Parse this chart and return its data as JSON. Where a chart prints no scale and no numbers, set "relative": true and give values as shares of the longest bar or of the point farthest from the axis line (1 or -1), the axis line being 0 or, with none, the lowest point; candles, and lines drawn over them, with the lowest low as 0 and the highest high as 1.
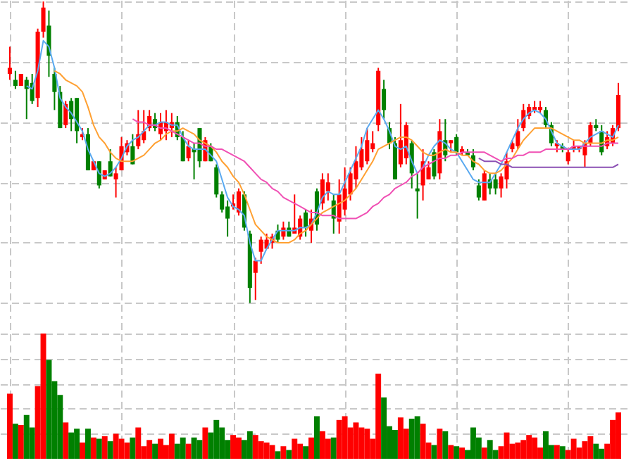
{
  "chart_data": [
    {
      "type": "candlestick",
      "relative": true,
      "grid": true,
      "tick_labels": false,
      "categories": [
        null,
        null,
        null,
        null,
        null,
        null,
        null,
        null,
        null,
        null,
        null,
        null,
        null,
        null,
        null,
        null,
        null,
        null,
        null,
        null,
        null,
        null,
        null,
        null,
        null,
        null,
        null,
        null,
        null,
        null,
        null,
        null,
        null,
        null,
        null,
        null,
        null,
        null,
        null,
        null,
        null,
        null,
        null,
        null,
        null,
        null,
        null,
        null,
        null,
        null,
        null,
        null,
        null,
        null,
        null,
        null,
        null,
        null,
        null,
        null,
        null,
        null,
        null,
        null,
        null,
        null,
        null,
        null,
        null,
        null,
        null,
        null,
        null,
        null,
        null,
        null,
        null,
        null,
        null,
        null,
        null,
        null,
        null,
        null,
        null,
        null,
        null,
        null,
        null,
        null,
        null,
        null,
        null,
        null,
        null,
        null,
        null,
        null,
        null,
        null,
        null,
        null,
        null,
        null,
        null,
        null,
        null,
        null,
        null,
        null
      ],
      "ohlc": [
        [
          0.76,
          0.85,
          0.74,
          0.78
        ],
        [
          0.74,
          0.77,
          0.71,
          0.72
        ],
        [
          0.72,
          0.76,
          0.72,
          0.76
        ],
        [
          0.74,
          0.75,
          0.61,
          0.71
        ],
        [
          0.73,
          0.76,
          0.66,
          0.67
        ],
        [
          0.68,
          0.91,
          0.65,
          0.9
        ],
        [
          0.9,
          1.0,
          0.88,
          0.98
        ],
        [
          0.92,
          0.97,
          0.75,
          0.82
        ],
        [
          0.76,
          0.78,
          0.64,
          0.7
        ],
        [
          0.7,
          0.72,
          0.58,
          0.58
        ],
        [
          0.59,
          0.67,
          0.58,
          0.66
        ],
        [
          0.67,
          0.68,
          0.57,
          0.61
        ],
        [
          0.68,
          0.68,
          0.53,
          0.57
        ],
        [
          0.55,
          0.58,
          0.54,
          0.56
        ],
        [
          0.56,
          0.58,
          0.44,
          0.44
        ],
        [
          0.44,
          0.47,
          0.44,
          0.47
        ],
        [
          0.47,
          0.47,
          0.38,
          0.39
        ],
        [
          0.41,
          0.44,
          0.41,
          0.44
        ],
        [
          0.47,
          0.51,
          0.42,
          0.42
        ],
        [
          0.41,
          0.45,
          0.35,
          0.43
        ],
        [
          0.44,
          0.55,
          0.44,
          0.52
        ],
        [
          0.5,
          0.54,
          0.49,
          0.53
        ],
        [
          0.52,
          0.56,
          0.46,
          0.46
        ],
        [
          0.52,
          0.64,
          0.51,
          0.56
        ],
        [
          0.54,
          0.64,
          0.53,
          0.57
        ],
        [
          0.58,
          0.64,
          0.57,
          0.62
        ],
        [
          0.61,
          0.63,
          0.57,
          0.58
        ],
        [
          0.56,
          0.63,
          0.54,
          0.6
        ],
        [
          0.57,
          0.64,
          0.54,
          0.6
        ],
        [
          0.58,
          0.63,
          0.55,
          0.6
        ],
        [
          0.6,
          0.62,
          0.54,
          0.55
        ],
        [
          0.55,
          0.57,
          0.47,
          0.47
        ],
        [
          0.48,
          0.54,
          0.47,
          0.52
        ],
        [
          0.51,
          0.53,
          0.41,
          0.5
        ],
        [
          0.58,
          0.58,
          0.45,
          0.47
        ],
        [
          0.47,
          0.55,
          0.47,
          0.54
        ],
        [
          0.52,
          0.53,
          0.47,
          0.47
        ],
        [
          0.45,
          0.46,
          0.35,
          0.36
        ],
        [
          0.36,
          0.37,
          0.3,
          0.31
        ],
        [
          0.32,
          0.34,
          0.22,
          0.28
        ],
        [
          0.32,
          0.36,
          0.31,
          0.33
        ],
        [
          0.3,
          0.38,
          0.29,
          0.37
        ],
        [
          0.36,
          0.37,
          0.24,
          0.25
        ],
        [
          0.23,
          0.24,
          0.0,
          0.05
        ],
        [
          0.1,
          0.15,
          0.01,
          0.14
        ],
        [
          0.17,
          0.22,
          0.13,
          0.21
        ],
        [
          0.18,
          0.23,
          0.18,
          0.21
        ],
        [
          0.2,
          0.23,
          0.18,
          0.22
        ],
        [
          0.24,
          0.26,
          0.2,
          0.21
        ],
        [
          0.22,
          0.27,
          0.21,
          0.25
        ],
        [
          0.25,
          0.27,
          0.22,
          0.22
        ],
        [
          0.23,
          0.36,
          0.23,
          0.25
        ],
        [
          0.22,
          0.29,
          0.21,
          0.28
        ],
        [
          0.3,
          0.31,
          0.22,
          0.25
        ],
        [
          0.24,
          0.31,
          0.2,
          0.28
        ],
        [
          0.37,
          0.38,
          0.24,
          0.26
        ],
        [
          0.33,
          0.43,
          0.31,
          0.41
        ],
        [
          0.37,
          0.43,
          0.34,
          0.4
        ],
        [
          0.34,
          0.36,
          0.23,
          0.28
        ],
        [
          0.27,
          0.41,
          0.23,
          0.36
        ],
        [
          0.31,
          0.45,
          0.29,
          0.38
        ],
        [
          0.36,
          0.45,
          0.34,
          0.43
        ],
        [
          0.41,
          0.52,
          0.38,
          0.47
        ],
        [
          0.45,
          0.55,
          0.44,
          0.51
        ],
        [
          0.47,
          0.58,
          0.46,
          0.54
        ],
        [
          0.51,
          0.57,
          0.5,
          0.53
        ],
        [
          0.59,
          0.78,
          0.57,
          0.77
        ],
        [
          0.71,
          0.74,
          0.61,
          0.64
        ],
        [
          0.58,
          0.6,
          0.51,
          0.53
        ],
        [
          0.53,
          0.55,
          0.41,
          0.41
        ],
        [
          0.46,
          0.66,
          0.45,
          0.54
        ],
        [
          0.48,
          0.6,
          0.46,
          0.59
        ],
        [
          0.53,
          0.54,
          0.38,
          0.43
        ],
        [
          0.38,
          0.43,
          0.28,
          0.37
        ],
        [
          0.39,
          0.51,
          0.34,
          0.47
        ],
        [
          0.41,
          0.47,
          0.41,
          0.45
        ],
        [
          0.5,
          0.51,
          0.41,
          0.42
        ],
        [
          0.43,
          0.61,
          0.41,
          0.57
        ],
        [
          0.54,
          0.61,
          0.47,
          0.49
        ],
        [
          0.53,
          0.54,
          0.5,
          0.54
        ],
        [
          0.55,
          0.56,
          0.49,
          0.5
        ],
        [
          0.5,
          0.52,
          0.49,
          0.51
        ],
        [
          0.5,
          0.51,
          0.49,
          0.49
        ],
        [
          0.49,
          0.51,
          0.44,
          0.45
        ],
        [
          0.39,
          0.41,
          0.34,
          0.35
        ],
        [
          0.34,
          0.44,
          0.34,
          0.43
        ],
        [
          0.41,
          0.43,
          0.36,
          0.38
        ],
        [
          0.41,
          0.43,
          0.36,
          0.38
        ],
        [
          0.38,
          0.43,
          0.35,
          0.42
        ],
        [
          0.41,
          0.5,
          0.38,
          0.47
        ],
        [
          0.51,
          0.54,
          0.5,
          0.53
        ],
        [
          0.52,
          0.61,
          0.51,
          0.57
        ],
        [
          0.58,
          0.66,
          0.57,
          0.64
        ],
        [
          0.62,
          0.66,
          0.61,
          0.65
        ],
        [
          0.64,
          0.67,
          0.63,
          0.65
        ],
        [
          0.64,
          0.67,
          0.63,
          0.65
        ],
        [
          0.64,
          0.65,
          0.58,
          0.59
        ],
        [
          0.59,
          0.6,
          0.52,
          0.53
        ],
        [
          0.52,
          0.54,
          0.5,
          0.53
        ],
        [
          0.52,
          0.53,
          0.5,
          0.51
        ],
        [
          0.47,
          0.51,
          0.46,
          0.5
        ],
        [
          0.51,
          0.54,
          0.5,
          0.52
        ],
        [
          0.51,
          0.52,
          0.5,
          0.52
        ],
        [
          0.49,
          0.54,
          0.45,
          0.53
        ],
        [
          0.53,
          0.6,
          0.52,
          0.59
        ],
        [
          0.59,
          0.61,
          0.57,
          0.58
        ],
        [
          0.57,
          0.59,
          0.49,
          0.5
        ],
        [
          0.52,
          0.57,
          0.51,
          0.55
        ],
        [
          0.53,
          0.59,
          0.52,
          0.58
        ],
        [
          0.58,
          0.73,
          0.57,
          0.69
        ]
      ],
      "colors": [
        "#ff0000",
        "#008000",
        "#ff0000",
        "#008000",
        "#008000",
        "#ff0000",
        "#ff0000",
        "#008000",
        "#008000",
        "#008000",
        "#ff0000",
        "#008000",
        "#008000",
        "#ff0000",
        "#008000",
        "#ff0000",
        "#008000",
        "#ff0000",
        "#008000",
        "#ff0000",
        "#ff0000",
        "#ff0000",
        "#008000",
        "#ff0000",
        "#ff0000",
        "#ff0000",
        "#008000",
        "#ff0000",
        "#ff0000",
        "#ff0000",
        "#008000",
        "#008000",
        "#ff0000",
        "#008000",
        "#008000",
        "#ff0000",
        "#008000",
        "#008000",
        "#008000",
        "#008000",
        "#ff0000",
        "#ff0000",
        "#008000",
        "#008000",
        "#ff0000",
        "#ff0000",
        "#ff0000",
        "#ff0000",
        "#008000",
        "#ff0000",
        "#008000",
        "#ff0000",
        "#ff0000",
        "#008000",
        "#ff0000",
        "#008000",
        "#ff0000",
        "#ff0000",
        "#008000",
        "#ff0000",
        "#ff0000",
        "#ff0000",
        "#ff0000",
        "#ff0000",
        "#ff0000",
        "#ff0000",
        "#ff0000",
        "#008000",
        "#008000",
        "#008000",
        "#ff0000",
        "#ff0000",
        "#008000",
        "#008000",
        "#ff0000",
        "#ff0000",
        "#008000",
        "#ff0000",
        "#008000",
        "#ff0000",
        "#008000",
        "#ff0000",
        "#008000",
        "#008000",
        "#008000",
        "#ff0000",
        "#008000",
        "#008000",
        "#ff0000",
        "#ff0000",
        "#ff0000",
        "#ff0000",
        "#ff0000",
        "#ff0000",
        "#ff0000",
        "#ff0000",
        "#008000",
        "#008000",
        "#ff0000",
        "#008000",
        "#ff0000",
        "#ff0000",
        "#ff0000",
        "#ff0000",
        "#ff0000",
        "#008000",
        "#008000",
        "#ff0000",
        "#ff0000",
        "#ff0000"
      ],
      "series": [
        {
          "type": "line",
          "color": "#5aa9f0",
          "values": [
            null,
            null,
            null,
            0.72,
            0.71,
            0.77,
            0.87,
            0.85,
            0.78,
            0.68,
            0.65,
            0.63,
            0.6,
            0.57,
            0.51,
            0.47,
            0.43,
            0.42,
            0.43,
            0.45,
            0.48,
            0.52,
            0.54,
            0.55,
            0.57,
            0.59,
            0.59,
            0.6,
            0.6,
            0.59,
            0.59,
            0.55,
            0.52,
            0.51,
            0.51,
            0.51,
            0.49,
            0.47,
            0.41,
            0.35,
            0.32,
            0.31,
            0.29,
            0.2,
            0.14,
            0.14,
            0.18,
            0.21,
            0.24,
            0.24,
            0.24,
            0.24,
            0.25,
            0.25,
            0.26,
            0.3,
            0.35,
            0.37,
            0.36,
            0.36,
            0.4,
            0.44,
            0.48,
            0.52,
            0.58,
            0.61,
            0.64,
            0.61,
            0.57,
            0.52,
            0.51,
            0.52,
            0.47,
            0.43,
            0.45,
            0.49,
            0.52,
            0.54,
            0.53,
            0.51,
            0.5,
            0.47,
            0.44,
            0.41,
            0.4,
            0.4,
            0.4,
            0.43,
            0.46,
            0.5,
            0.54,
            0.58,
            0.61,
            0.63,
            0.64,
            0.63,
            0.61,
            0.57,
            0.53,
            0.52,
            0.51,
            0.51,
            0.51,
            0.53,
            0.55,
            0.56,
            0.57,
            0.56,
            0.55,
            0.59
          ]
        },
        {
          "type": "line",
          "color": "#ffa032",
          "values": [
            null,
            null,
            null,
            null,
            null,
            null,
            null,
            null,
            0.77,
            0.76,
            0.74,
            0.73,
            0.72,
            0.7,
            0.65,
            0.59,
            0.55,
            0.53,
            0.5,
            0.48,
            0.47,
            0.47,
            0.47,
            0.48,
            0.49,
            0.51,
            0.53,
            0.54,
            0.56,
            0.57,
            0.57,
            0.58,
            0.57,
            0.56,
            0.54,
            0.53,
            0.52,
            0.5,
            0.47,
            0.45,
            0.42,
            0.4,
            0.36,
            0.31,
            0.26,
            0.24,
            0.22,
            0.21,
            0.2,
            0.2,
            0.2,
            0.21,
            0.23,
            0.24,
            0.26,
            0.28,
            0.3,
            0.31,
            0.32,
            0.33,
            0.34,
            0.36,
            0.38,
            0.41,
            0.44,
            0.47,
            0.51,
            0.52,
            0.53,
            0.54,
            0.55,
            0.55,
            0.54,
            0.52,
            0.5,
            0.49,
            0.49,
            0.5,
            0.51,
            0.5,
            0.5,
            0.49,
            0.49,
            0.47,
            0.46,
            0.44,
            0.43,
            0.43,
            0.44,
            0.46,
            0.48,
            0.51,
            0.54,
            0.56,
            0.58,
            0.58,
            0.58,
            0.58,
            0.57,
            0.56,
            0.55,
            0.54,
            0.54,
            0.53,
            0.53,
            0.53,
            0.53,
            0.54,
            0.54,
            0.55
          ]
        },
        {
          "type": "line",
          "color": "#f050b4",
          "values": [
            null,
            null,
            null,
            null,
            null,
            null,
            null,
            null,
            null,
            null,
            null,
            null,
            null,
            null,
            null,
            null,
            null,
            null,
            null,
            null,
            null,
            null,
            0.61,
            0.6,
            0.6,
            0.59,
            0.59,
            0.58,
            0.58,
            0.57,
            0.56,
            0.55,
            0.54,
            0.53,
            0.53,
            0.52,
            0.52,
            0.51,
            0.51,
            0.5,
            0.49,
            0.48,
            0.47,
            0.45,
            0.43,
            0.41,
            0.4,
            0.38,
            0.37,
            0.35,
            0.34,
            0.33,
            0.32,
            0.31,
            0.3,
            0.3,
            0.29,
            0.29,
            0.29,
            0.28,
            0.28,
            0.28,
            0.28,
            0.29,
            0.3,
            0.32,
            0.33,
            0.35,
            0.36,
            0.38,
            0.39,
            0.4,
            0.42,
            0.43,
            0.45,
            0.46,
            0.47,
            0.48,
            0.48,
            0.49,
            0.49,
            0.5,
            0.5,
            0.5,
            0.5,
            0.5,
            0.49,
            0.48,
            0.47,
            0.48,
            0.48,
            0.49,
            0.49,
            0.5,
            0.5,
            0.5,
            0.51,
            0.51,
            0.51,
            0.51,
            0.51,
            0.52,
            0.52,
            0.52,
            0.52,
            0.52,
            0.52,
            0.53,
            0.53,
            0.53
          ]
        },
        {
          "type": "line",
          "color": "#8c50b4",
          "values": [
            null,
            null,
            null,
            null,
            null,
            null,
            null,
            null,
            null,
            null,
            null,
            null,
            null,
            null,
            null,
            null,
            null,
            null,
            null,
            null,
            null,
            null,
            null,
            null,
            null,
            null,
            null,
            null,
            null,
            null,
            null,
            null,
            null,
            null,
            null,
            null,
            null,
            null,
            null,
            null,
            null,
            null,
            null,
            null,
            null,
            null,
            null,
            null,
            null,
            null,
            null,
            null,
            null,
            null,
            null,
            null,
            null,
            null,
            null,
            null,
            null,
            null,
            null,
            null,
            null,
            null,
            null,
            null,
            null,
            null,
            null,
            null,
            null,
            null,
            null,
            null,
            null,
            null,
            null,
            null,
            null,
            null,
            null,
            null,
            0.48,
            0.47,
            0.47,
            0.47,
            0.46,
            0.46,
            0.45,
            0.45,
            0.45,
            0.45,
            0.45,
            0.45,
            0.45,
            0.45,
            0.45,
            0.45,
            0.45,
            0.45,
            0.45,
            0.45,
            0.45,
            0.45,
            0.45,
            0.45,
            0.45,
            0.46
          ]
        }
      ]
    },
    {
      "type": "bar",
      "relative": true,
      "grid": true,
      "tick_labels": false,
      "categories": [
        null,
        null,
        null,
        null,
        null,
        null,
        null,
        null,
        null,
        null,
        null,
        null,
        null,
        null,
        null,
        null,
        null,
        null,
        null,
        null,
        null,
        null,
        null,
        null,
        null,
        null,
        null,
        null,
        null,
        null,
        null,
        null,
        null,
        null,
        null,
        null,
        null,
        null,
        null,
        null,
        null,
        null,
        null,
        null,
        null,
        null,
        null,
        null,
        null,
        null,
        null,
        null,
        null,
        null,
        null,
        null,
        null,
        null,
        null,
        null,
        null,
        null,
        null,
        null,
        null,
        null,
        null,
        null,
        null,
        null,
        null,
        null,
        null,
        null,
        null,
        null,
        null,
        null,
        null,
        null,
        null,
        null,
        null,
        null,
        null,
        null,
        null,
        null,
        null,
        null,
        null,
        null,
        null,
        null,
        null,
        null,
        null,
        null,
        null,
        null,
        null,
        null,
        null,
        null,
        null,
        null,
        null,
        null,
        null,
        null
      ],
      "values": [
        0.52,
        0.28,
        0.27,
        0.35,
        0.25,
        0.58,
        1.0,
        0.79,
        0.62,
        0.51,
        0.29,
        0.21,
        0.24,
        0.13,
        0.24,
        0.17,
        0.16,
        0.18,
        0.14,
        0.2,
        0.16,
        0.13,
        0.17,
        0.25,
        0.1,
        0.15,
        0.12,
        0.16,
        0.11,
        0.2,
        0.12,
        0.17,
        0.12,
        0.17,
        0.15,
        0.25,
        0.21,
        0.31,
        0.25,
        0.15,
        0.19,
        0.17,
        0.15,
        0.22,
        0.19,
        0.14,
        0.13,
        0.11,
        0.06,
        0.1,
        0.07,
        0.16,
        0.12,
        0.1,
        0.17,
        0.34,
        0.22,
        0.16,
        0.17,
        0.31,
        0.34,
        0.25,
        0.29,
        0.25,
        0.24,
        0.16,
        0.68,
        0.49,
        0.26,
        0.23,
        0.33,
        0.24,
        0.32,
        0.34,
        0.28,
        0.13,
        0.11,
        0.24,
        0.22,
        0.11,
        0.1,
        0.09,
        0.07,
        0.25,
        0.17,
        0.09,
        0.15,
        0.07,
        0.1,
        0.21,
        0.12,
        0.13,
        0.15,
        0.19,
        0.17,
        0.09,
        0.22,
        0.11,
        0.11,
        0.1,
        0.07,
        0.16,
        0.09,
        0.14,
        0.18,
        0.12,
        0.08,
        0.12,
        0.31,
        0.37
      ],
      "colors": [
        "#ff0000",
        "#008000",
        "#ff0000",
        "#008000",
        "#008000",
        "#ff0000",
        "#ff0000",
        "#008000",
        "#008000",
        "#008000",
        "#ff0000",
        "#008000",
        "#008000",
        "#ff0000",
        "#008000",
        "#ff0000",
        "#008000",
        "#ff0000",
        "#008000",
        "#ff0000",
        "#ff0000",
        "#ff0000",
        "#008000",
        "#ff0000",
        "#ff0000",
        "#ff0000",
        "#008000",
        "#ff0000",
        "#ff0000",
        "#ff0000",
        "#008000",
        "#008000",
        "#ff0000",
        "#008000",
        "#008000",
        "#ff0000",
        "#008000",
        "#008000",
        "#008000",
        "#008000",
        "#ff0000",
        "#ff0000",
        "#008000",
        "#008000",
        "#ff0000",
        "#ff0000",
        "#ff0000",
        "#ff0000",
        "#008000",
        "#ff0000",
        "#008000",
        "#ff0000",
        "#ff0000",
        "#008000",
        "#ff0000",
        "#008000",
        "#ff0000",
        "#ff0000",
        "#008000",
        "#ff0000",
        "#ff0000",
        "#ff0000",
        "#ff0000",
        "#ff0000",
        "#ff0000",
        "#ff0000",
        "#ff0000",
        "#008000",
        "#008000",
        "#008000",
        "#ff0000",
        "#ff0000",
        "#008000",
        "#008000",
        "#ff0000",
        "#ff0000",
        "#008000",
        "#ff0000",
        "#008000",
        "#ff0000",
        "#008000",
        "#ff0000",
        "#008000",
        "#008000",
        "#008000",
        "#ff0000",
        "#008000",
        "#008000",
        "#ff0000",
        "#ff0000",
        "#ff0000",
        "#ff0000",
        "#ff0000",
        "#ff0000",
        "#ff0000",
        "#ff0000",
        "#008000",
        "#008000",
        "#ff0000",
        "#008000",
        "#ff0000",
        "#ff0000",
        "#ff0000",
        "#ff0000",
        "#ff0000",
        "#008000",
        "#008000",
        "#ff0000",
        "#ff0000",
        "#ff0000"
      ]
    }
  ]
}
